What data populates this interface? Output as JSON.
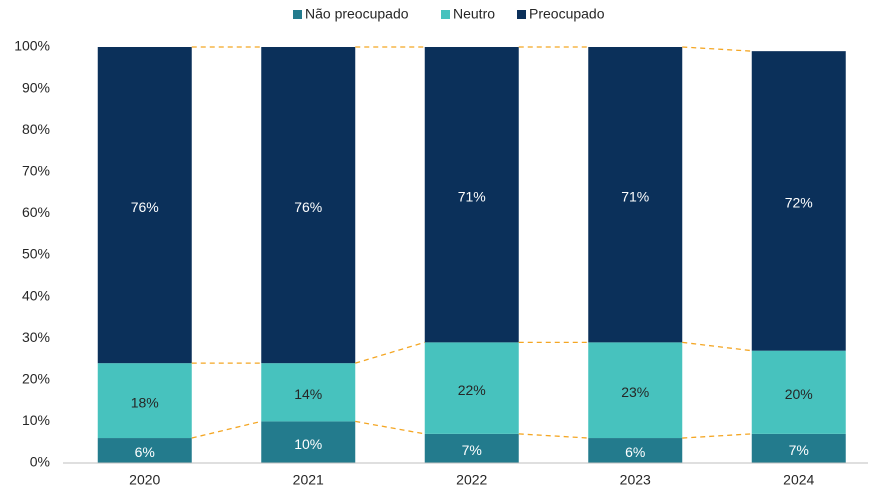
{
  "chart_data": {
    "type": "stacked_bar",
    "categories": [
      "2020",
      "2021",
      "2022",
      "2023",
      "2024"
    ],
    "series": [
      {
        "name": "Não preocupado",
        "color": "#237b8d",
        "values": [
          6,
          10,
          7,
          6,
          7
        ],
        "value_labels": [
          "6%",
          "10%",
          "7%",
          "6%",
          "7%"
        ]
      },
      {
        "name": "Neutro",
        "color": "#47c2be",
        "values": [
          18,
          14,
          22,
          23,
          20
        ],
        "value_labels": [
          "18%",
          "14%",
          "22%",
          "23%",
          "20%"
        ]
      },
      {
        "name": "Preocupado",
        "color": "#0b305a",
        "values": [
          76,
          76,
          71,
          71,
          72
        ],
        "value_labels": [
          "76%",
          "76%",
          "71%",
          "71%",
          "72%"
        ]
      }
    ],
    "ylim": [
      0,
      100
    ],
    "yticks": [
      {
        "value": 0,
        "label": "0%"
      },
      {
        "value": 10,
        "label": "10%"
      },
      {
        "value": 20,
        "label": "20%"
      },
      {
        "value": 30,
        "label": "30%"
      },
      {
        "value": 40,
        "label": "40%"
      },
      {
        "value": 50,
        "label": "50%"
      },
      {
        "value": 60,
        "label": "60%"
      },
      {
        "value": 70,
        "label": "70%"
      },
      {
        "value": 80,
        "label": "80%"
      },
      {
        "value": 90,
        "label": "90%"
      },
      {
        "value": 100,
        "label": "100%"
      }
    ],
    "legend": "top"
  }
}
